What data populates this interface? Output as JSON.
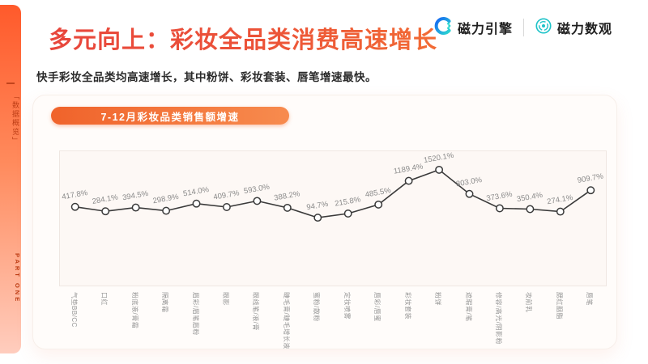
{
  "sidebar": {
    "section_label": "「数据概览」",
    "part_label": "PART ONE"
  },
  "header": {
    "title_accent": "多元向上：",
    "title_rest": "彩妆全品类消费高速增长",
    "subtitle": "快手彩妆全品类均高速增长，其中粉饼、彩妆套装、唇笔增速最快。",
    "brand_primary": "磁力引擎",
    "brand_secondary": "磁力数观"
  },
  "chart_card": {
    "badge_label": "7-12月彩妆品类销售额增速"
  },
  "chart_data": {
    "type": "line",
    "title": "7-12月彩妆品类销售额增速",
    "categories": [
      "气垫BB/CC",
      "口红",
      "粉底液/膏霜",
      "隔离霜",
      "眉彩/眉笔眉粉",
      "眼影",
      "眼线笔/液/膏",
      "睫毛膏/睫毛增长液",
      "蜜粉/散粉",
      "定妆喷雾",
      "唇彩/唇蜜",
      "彩妆套装",
      "粉饼",
      "遮瑕膏/笔",
      "修容/高光/阴影粉",
      "妆前乳",
      "腮红胭脂",
      "唇笔"
    ],
    "values": [
      417.8,
      284.1,
      394.5,
      298.9,
      514.0,
      409.7,
      593.0,
      388.2,
      94.7,
      215.8,
      485.5,
      1189.4,
      1520.1,
      803.0,
      373.6,
      350.4,
      274.1,
      909.7
    ],
    "unit": "%",
    "xlabel": "",
    "ylabel": "",
    "ylim": [
      0,
      2100
    ],
    "grid": false,
    "legend": false,
    "marker": "open-circle",
    "x_label_rotation": 90,
    "value_label_rotation": -10,
    "line_color": "#3A3A3A",
    "value_label_color": "#8A8A8A",
    "axis_label_color": "#969696"
  },
  "colors": {
    "accent_red": "#E8463C",
    "accent_orange": "#F2682C",
    "sidebar_gradient_top": "#FF5A2B",
    "sidebar_gradient_bottom": "#FFCDBE",
    "badge_gradient_from": "#F0632B",
    "badge_gradient_to": "#F78B4E",
    "card_background": "#FFFCFA",
    "plot_background": "#FDF8F5",
    "brand_blue": "#1464F4",
    "brand_teal": "#1FC3C8"
  }
}
